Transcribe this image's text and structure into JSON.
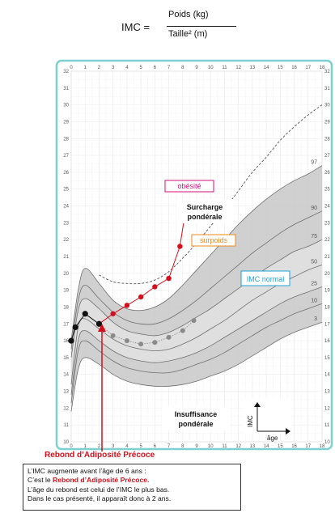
{
  "formula": {
    "lhs": "IMC =",
    "numerator": "Poids  (kg)",
    "denominator": "Taille² (m)"
  },
  "annotations": {
    "obesite": "obésité",
    "surcharge_1": "Surcharge",
    "surcharge_2": "pondérale",
    "surpoids": "surpoids",
    "imc_normal": "IMC normal",
    "insuffisance_1": "Insuffisance",
    "insuffisance_2": "pondérale",
    "axis_y": "IMC",
    "axis_x": "âge",
    "rebond_title": "Rebond d’Adiposité Précoce"
  },
  "info": {
    "line1": "L’IMC augmente avant l’âge de 6 ans :",
    "line2_prefix": "C’est le ",
    "line2_bold": "Rebond d’Adiposité Précoce.",
    "line3": "L’âge du rebond est celui de l’IMC le plus bas.",
    "line4": "Dans le cas présenté, il apparaît donc à 2 ans."
  },
  "colors": {
    "frame": "#7ecfcf",
    "obesite": "#d6127c",
    "surpoids": "#f08a1c",
    "imc_normal": "#1aa2d8",
    "red_series": "#d4101c",
    "black_series": "#111111",
    "grey_series": "#8a8a8a",
    "band_dark": "#c8c8c8",
    "band_light": "#e2e2e2"
  },
  "chart_data": {
    "type": "line",
    "x_ticks": [
      "0",
      "1",
      "2",
      "3",
      "4",
      "5",
      "6",
      "7",
      "8",
      "9",
      "10",
      "11",
      "12",
      "13",
      "14",
      "15",
      "16",
      "17",
      "18"
    ],
    "y_ticks": [
      "10",
      "11",
      "12",
      "13",
      "14",
      "15",
      "16",
      "17",
      "18",
      "19",
      "20",
      "21",
      "22",
      "23",
      "24",
      "25",
      "26",
      "27",
      "28",
      "29",
      "30",
      "31",
      "32"
    ],
    "xlim": [
      0,
      18
    ],
    "ylim": [
      10,
      32
    ],
    "percentile_labels": [
      "97",
      "90",
      "75",
      "50",
      "25",
      "10",
      "3"
    ],
    "percentiles": [
      {
        "name": "97",
        "x": [
          0,
          0.5,
          1,
          2,
          3,
          4,
          5,
          6,
          7,
          8,
          9,
          10,
          11,
          12,
          13,
          14,
          15,
          16,
          17,
          18
        ],
        "y": [
          16.0,
          19.0,
          20.3,
          19.4,
          18.4,
          17.9,
          17.8,
          18.0,
          18.5,
          19.3,
          20.2,
          21.1,
          22.0,
          22.9,
          23.7,
          24.4,
          25.0,
          25.5,
          25.9,
          26.4
        ]
      },
      {
        "name": "90",
        "x": [
          0,
          0.5,
          1,
          2,
          3,
          4,
          5,
          6,
          7,
          8,
          9,
          10,
          11,
          12,
          13,
          14,
          15,
          16,
          17,
          18
        ],
        "y": [
          15.5,
          18.4,
          19.3,
          18.5,
          17.7,
          17.2,
          17.0,
          17.0,
          17.3,
          17.8,
          18.4,
          19.1,
          19.8,
          20.5,
          21.2,
          21.8,
          22.4,
          22.9,
          23.3,
          23.7
        ]
      },
      {
        "name": "75",
        "x": [
          0,
          0.5,
          1,
          2,
          3,
          4,
          5,
          6,
          7,
          8,
          9,
          10,
          11,
          12,
          13,
          14,
          15,
          16,
          17,
          18
        ],
        "y": [
          15.0,
          17.8,
          18.5,
          17.9,
          17.1,
          16.6,
          16.4,
          16.3,
          16.5,
          16.9,
          17.4,
          17.9,
          18.5,
          19.1,
          19.7,
          20.3,
          20.8,
          21.3,
          21.6,
          22.0
        ]
      },
      {
        "name": "50",
        "x": [
          0,
          0.5,
          1,
          2,
          3,
          4,
          5,
          6,
          7,
          8,
          9,
          10,
          11,
          12,
          13,
          14,
          15,
          16,
          17,
          18
        ],
        "y": [
          13.4,
          16.8,
          17.3,
          16.7,
          16.1,
          15.7,
          15.5,
          15.4,
          15.5,
          15.8,
          16.2,
          16.7,
          17.2,
          17.8,
          18.4,
          18.9,
          19.4,
          19.8,
          20.2,
          20.5
        ]
      },
      {
        "name": "25",
        "x": [
          0,
          0.5,
          1,
          2,
          3,
          4,
          5,
          6,
          7,
          8,
          9,
          10,
          11,
          12,
          13,
          14,
          15,
          16,
          17,
          18
        ],
        "y": [
          12.8,
          16.0,
          16.6,
          16.0,
          15.4,
          15.0,
          14.8,
          14.7,
          14.8,
          15.0,
          15.3,
          15.7,
          16.2,
          16.7,
          17.2,
          17.7,
          18.2,
          18.6,
          18.9,
          19.2
        ]
      },
      {
        "name": "10",
        "x": [
          0,
          0.5,
          1,
          2,
          3,
          4,
          5,
          6,
          7,
          8,
          9,
          10,
          11,
          12,
          13,
          14,
          15,
          16,
          17,
          18
        ],
        "y": [
          12.3,
          15.4,
          16.0,
          15.4,
          14.8,
          14.4,
          14.2,
          14.1,
          14.1,
          14.3,
          14.6,
          14.9,
          15.3,
          15.8,
          16.3,
          16.8,
          17.2,
          17.6,
          17.9,
          18.2
        ]
      },
      {
        "name": "3",
        "x": [
          0,
          0.5,
          1,
          2,
          3,
          4,
          5,
          6,
          7,
          8,
          9,
          10,
          11,
          12,
          13,
          14,
          15,
          16,
          17,
          18
        ],
        "y": [
          11.8,
          14.3,
          15.0,
          14.6,
          14.0,
          13.6,
          13.4,
          13.3,
          13.3,
          13.4,
          13.6,
          13.9,
          14.2,
          14.6,
          15.1,
          15.6,
          16.1,
          16.5,
          16.8,
          17.1
        ]
      }
    ],
    "obesity_threshold": {
      "name": "obésité",
      "x": [
        2,
        3,
        4,
        5,
        6,
        7,
        8,
        9,
        10,
        11,
        12,
        13,
        14,
        15,
        16,
        17,
        18
      ],
      "y": [
        19.9,
        19.5,
        19.4,
        19.4,
        19.6,
        20.1,
        20.9,
        21.8,
        22.8,
        23.8,
        24.9,
        26.0,
        26.9,
        27.9,
        28.7,
        29.4,
        30.0
      ]
    },
    "series_red": {
      "x": [
        2,
        3,
        4,
        5,
        6,
        7,
        7.8,
        8.2
      ],
      "y": [
        17.0,
        17.6,
        18.1,
        18.6,
        19.2,
        19.7,
        21.6,
        23.7
      ]
    },
    "series_black": {
      "x": [
        0,
        0.3,
        1,
        2
      ],
      "y": [
        16.0,
        16.8,
        17.6,
        17.0
      ]
    },
    "series_grey": {
      "x": [
        3,
        4,
        5,
        6,
        7,
        8,
        8.8
      ],
      "y": [
        16.3,
        16.0,
        15.8,
        15.9,
        16.2,
        16.6,
        17.2
      ]
    }
  }
}
